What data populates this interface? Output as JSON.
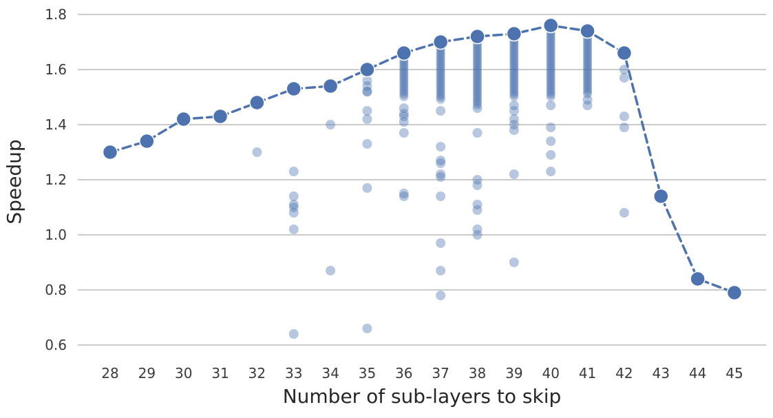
{
  "chart_data": {
    "type": "scatter",
    "title": "",
    "xlabel": "Number of sub-layers to skip",
    "ylabel": "Speedup",
    "x_ticks": [
      28,
      29,
      30,
      31,
      32,
      33,
      34,
      35,
      36,
      37,
      38,
      39,
      40,
      41,
      42,
      43,
      44,
      45
    ],
    "y_ticks": [
      0.6,
      0.8,
      1.0,
      1.2,
      1.4,
      1.6,
      1.8
    ],
    "xlim": [
      27.1,
      45.9
    ],
    "ylim": [
      0.53,
      1.85
    ],
    "grid": "horizontal-only",
    "legend": "none",
    "colors": {
      "series_blue": "#4C72B0",
      "gridline": "#cbcbcb",
      "tick_text": "#3a3a3a",
      "title_text": "#262626",
      "background": "#ffffff"
    },
    "series": [
      {
        "name": "best-speedup-per-skip-count",
        "style": "dashed-line-with-round-markers",
        "x": [
          28,
          29,
          30,
          31,
          32,
          33,
          34,
          35,
          36,
          37,
          38,
          39,
          40,
          41,
          42,
          43,
          44,
          45
        ],
        "y": [
          1.3,
          1.34,
          1.42,
          1.43,
          1.48,
          1.53,
          1.54,
          1.6,
          1.66,
          1.7,
          1.72,
          1.73,
          1.76,
          1.74,
          1.66,
          1.14,
          0.84,
          0.79
        ]
      },
      {
        "name": "individual-run-speedups",
        "style": "translucent-points",
        "columns": [
          {
            "x": 32,
            "points": [
              1.3
            ]
          },
          {
            "x": 33,
            "points": [
              1.23,
              1.14,
              1.11,
              1.1,
              1.08,
              1.02,
              0.64
            ]
          },
          {
            "x": 34,
            "points": [
              1.4,
              0.87
            ]
          },
          {
            "x": 35,
            "points": [
              1.56,
              1.54,
              1.52,
              1.52,
              1.45,
              1.42,
              1.33,
              1.17,
              0.66
            ]
          },
          {
            "x": 36,
            "band": [
              1.5,
              1.65
            ],
            "points": [
              1.46,
              1.44,
              1.43,
              1.41,
              1.37,
              1.15,
              1.14
            ]
          },
          {
            "x": 37,
            "band": [
              1.49,
              1.69
            ],
            "points": [
              1.45,
              1.32,
              1.27,
              1.26,
              1.22,
              1.21,
              1.14,
              0.97,
              0.87,
              0.78
            ]
          },
          {
            "x": 38,
            "band": [
              1.47,
              1.71
            ],
            "points": [
              1.46,
              1.37,
              1.2,
              1.18,
              1.11,
              1.09,
              1.02,
              1.0
            ]
          },
          {
            "x": 39,
            "band": [
              1.5,
              1.72
            ],
            "points": [
              1.47,
              1.45,
              1.42,
              1.4,
              1.38,
              1.22,
              0.9
            ]
          },
          {
            "x": 40,
            "band": [
              1.5,
              1.75
            ],
            "points": [
              1.47,
              1.39,
              1.34,
              1.29,
              1.23
            ]
          },
          {
            "x": 41,
            "band": [
              1.51,
              1.73
            ],
            "points": [
              1.49,
              1.47
            ]
          },
          {
            "x": 42,
            "points": [
              1.6,
              1.57,
              1.43,
              1.39,
              1.08
            ]
          }
        ]
      }
    ]
  }
}
